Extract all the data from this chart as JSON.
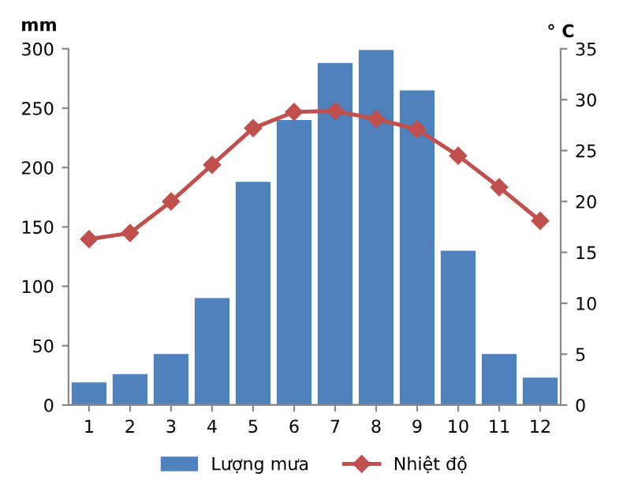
{
  "chart_data": {
    "type": "bar",
    "ylabel": "mm",
    "y2label": "° C",
    "categories": [
      "1",
      "2",
      "3",
      "4",
      "5",
      "6",
      "7",
      "8",
      "9",
      "10",
      "11",
      "12"
    ],
    "series": [
      {
        "name": "Lượng mưa",
        "color": "#4f81bd",
        "values": [
          19,
          26,
          43,
          90,
          188,
          240,
          288,
          299,
          265,
          130,
          43,
          23
        ]
      },
      {
        "name": "Nhiệt độ",
        "type": "line",
        "axis": "y2",
        "color": "#c0504d",
        "marker": "diamond",
        "values": [
          16.3,
          16.9,
          20.0,
          23.6,
          27.2,
          28.8,
          28.9,
          28.1,
          27.1,
          24.5,
          21.4,
          18.1
        ]
      }
    ],
    "ylim": [
      0,
      300
    ],
    "yticks": [
      0,
      50,
      100,
      150,
      200,
      250,
      300
    ],
    "y2lim": [
      0,
      35
    ],
    "y2ticks": [
      0,
      5,
      10,
      15,
      20,
      25,
      30,
      35
    ],
    "grid": false,
    "legend": "bottom"
  }
}
